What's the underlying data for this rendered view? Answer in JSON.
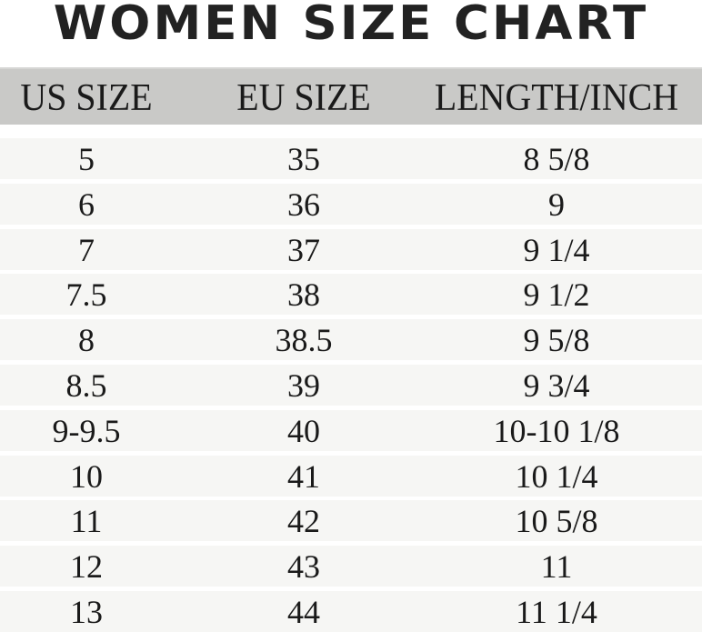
{
  "title": "WOMEN SIZE CHART",
  "headers": [
    "US SIZE",
    "EU SIZE",
    "LENGTH/INCH"
  ],
  "rows": [
    [
      "5",
      "35",
      "8 5/8"
    ],
    [
      "6",
      "36",
      "9"
    ],
    [
      "7",
      "37",
      "9 1/4"
    ],
    [
      "7.5",
      "38",
      "9 1/2"
    ],
    [
      "8",
      "38.5",
      "9 5/8"
    ],
    [
      "8.5",
      "39",
      "9 3/4"
    ],
    [
      "9-9.5",
      "40",
      "10-10 1/8"
    ],
    [
      "10",
      "41",
      "10 1/4"
    ],
    [
      "11",
      "42",
      "10 5/8"
    ],
    [
      "12",
      "43",
      "11"
    ],
    [
      "13",
      "44",
      "11 1/4"
    ]
  ],
  "colors": {
    "header_bg": "#c9c9c7",
    "row_bg": "#f6f6f4",
    "text": "#1a1a1a"
  }
}
